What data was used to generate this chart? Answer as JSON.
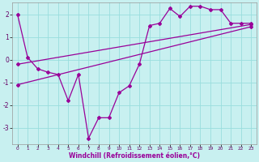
{
  "xlabel": "Windchill (Refroidissement éolien,°C)",
  "bg_color": "#c8f0f0",
  "grid_color": "#99dddd",
  "line_color": "#990099",
  "xlim": [
    -0.5,
    23.5
  ],
  "ylim": [
    -3.7,
    2.5
  ],
  "xticks": [
    0,
    1,
    2,
    3,
    4,
    5,
    6,
    7,
    8,
    9,
    10,
    11,
    12,
    13,
    14,
    15,
    16,
    17,
    18,
    19,
    20,
    21,
    22,
    23
  ],
  "yticks": [
    -3,
    -2,
    -1,
    0,
    1,
    2
  ],
  "line1_x": [
    0,
    1,
    2,
    3,
    4,
    5,
    6,
    7,
    8,
    9,
    10,
    11,
    12,
    13,
    14,
    15,
    16,
    17,
    18,
    19,
    20,
    21,
    22,
    23
  ],
  "line1_y": [
    2.0,
    0.1,
    -0.4,
    -0.55,
    -0.65,
    -1.8,
    -0.65,
    -3.45,
    -2.55,
    -2.55,
    -1.45,
    -1.15,
    -0.2,
    1.5,
    1.6,
    2.25,
    1.9,
    2.35,
    2.35,
    2.2,
    2.2,
    1.6,
    1.6,
    1.6
  ],
  "line2_x": [
    0,
    23
  ],
  "line2_y": [
    -0.2,
    1.55
  ],
  "line3_x": [
    0,
    23
  ],
  "line3_y": [
    -1.1,
    1.45
  ]
}
